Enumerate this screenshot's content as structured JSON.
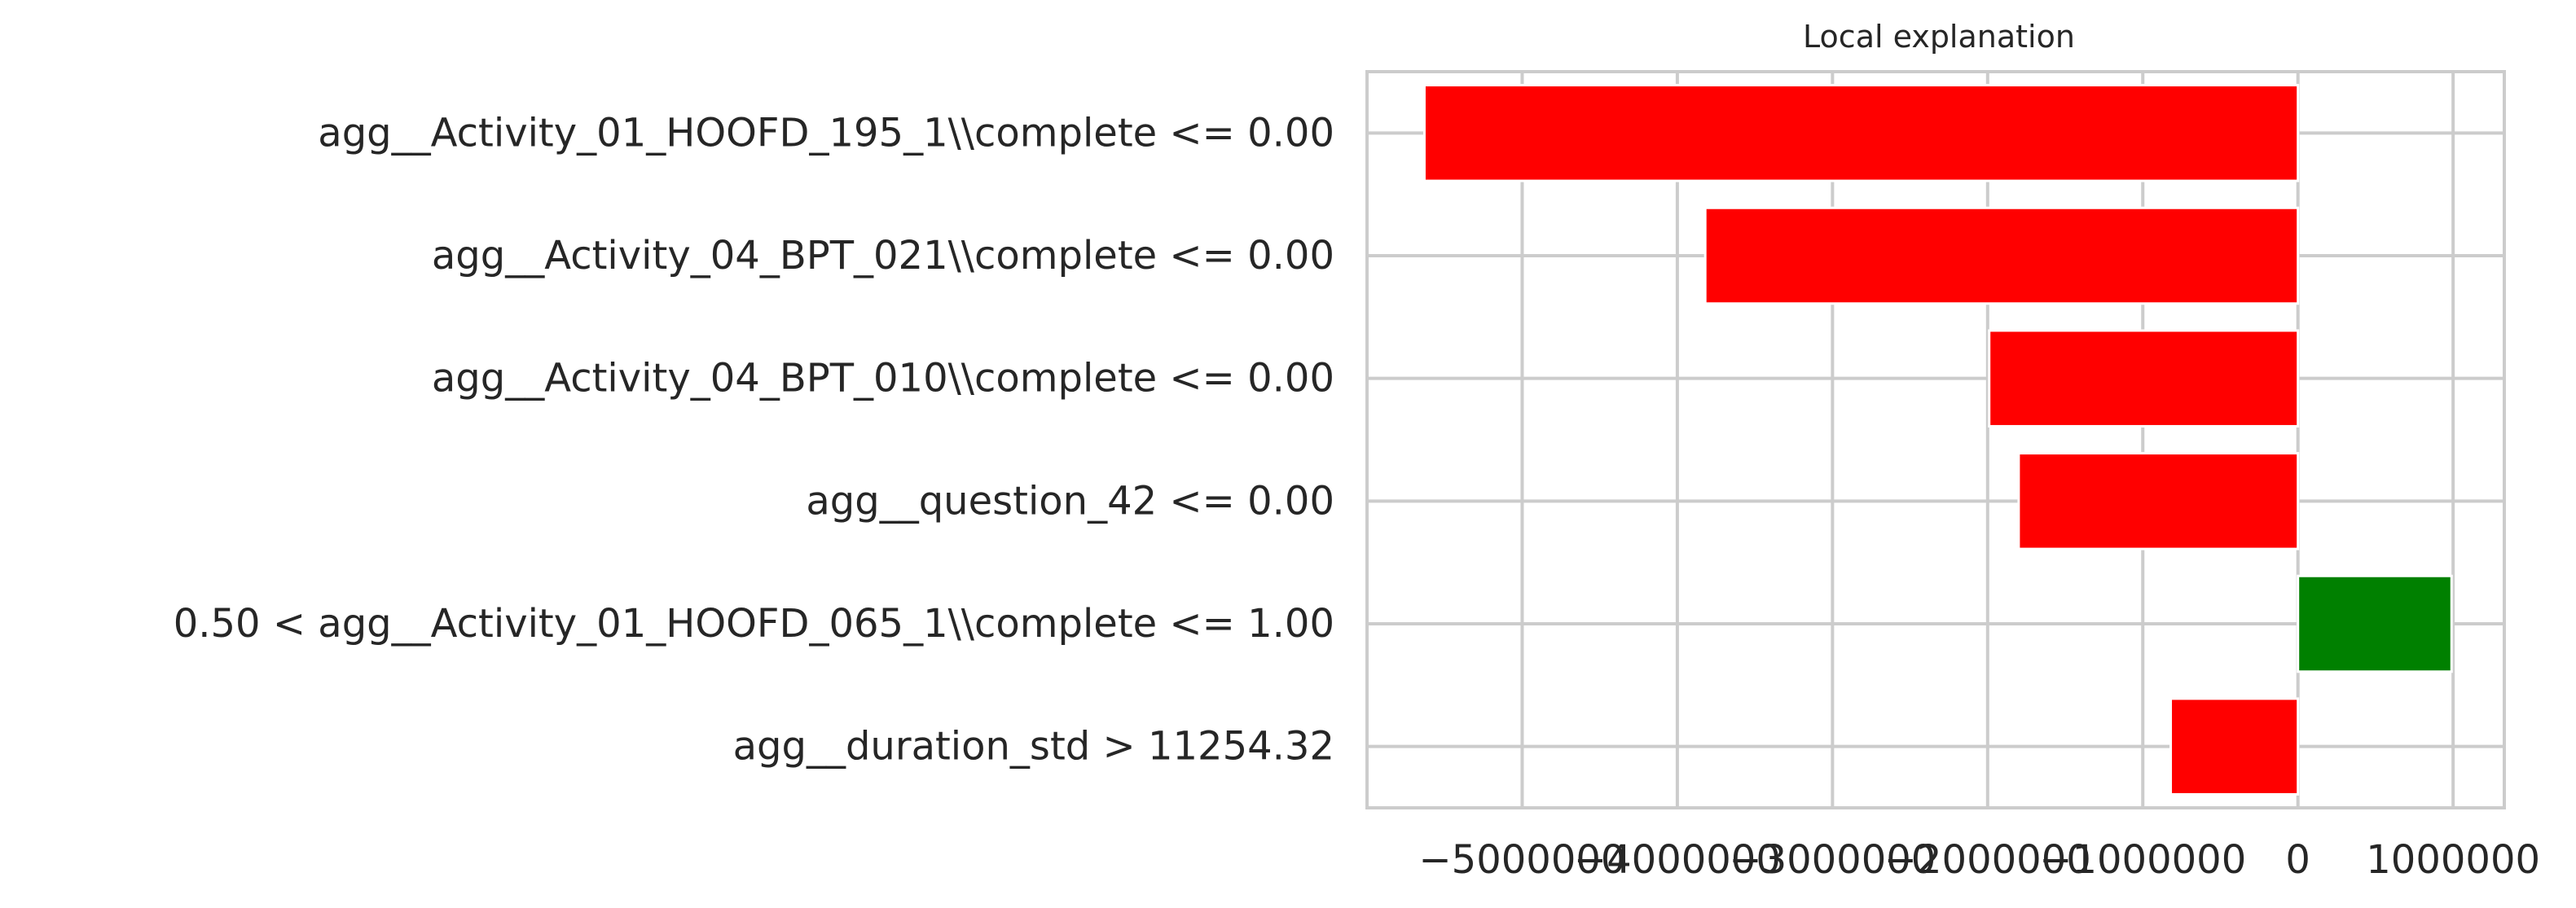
{
  "chart_data": {
    "type": "bar",
    "orientation": "horizontal",
    "title": "Local explanation",
    "xlabel": "",
    "ylabel": "",
    "categories": [
      "agg__Activity_01_HOOFD_195_1\\\\complete <= 0.00",
      "agg__Activity_04_BPT_021\\\\complete <= 0.00",
      "agg__Activity_04_BPT_010\\\\complete <= 0.00",
      "agg__question_42 <= 0.00",
      "0.50 < agg__Activity_01_HOOFD_065_1\\\\complete <= 1.00",
      "agg__duration_std > 11254.32"
    ],
    "values": [
      -5630000,
      -3820000,
      -1990000,
      -1800000,
      990000,
      -820000
    ],
    "colors": [
      "#ff0000",
      "#ff0000",
      "#ff0000",
      "#ff0000",
      "#008000",
      "#ff0000"
    ],
    "positive_color": "#008000",
    "negative_color": "#ff0000",
    "xlim": [
      -6000000,
      1330000
    ],
    "xticks": [
      -5000000,
      -4000000,
      -3000000,
      -2000000,
      -1000000,
      0,
      1000000
    ],
    "xtick_labels": [
      "−5000000",
      "−4000000",
      "−3000000",
      "−2000000",
      "−1000000",
      "0",
      "1000000"
    ],
    "grid": true,
    "legend": "none"
  }
}
